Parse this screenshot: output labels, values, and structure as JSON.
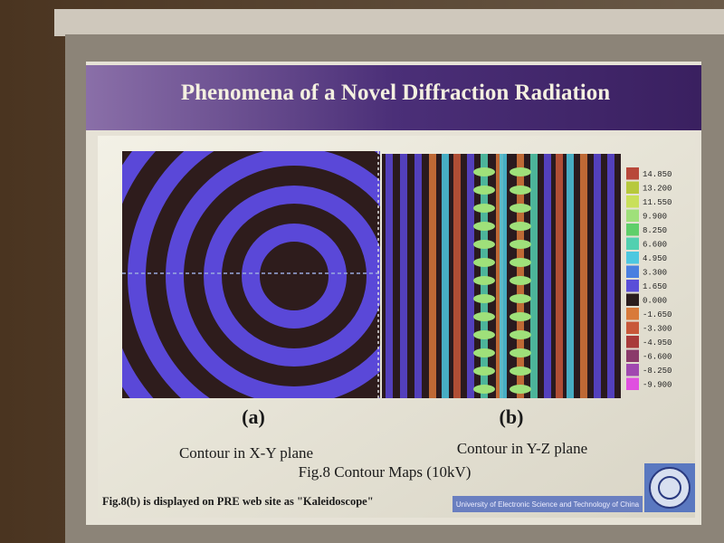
{
  "slide": {
    "title": "Phenomena of a Novel Diffraction Radiation",
    "panels": [
      {
        "label": "(a)",
        "caption": "Contour in X-Y plane"
      },
      {
        "label": "(b)",
        "caption": "Contour in Y-Z plane"
      }
    ],
    "figure_caption": "Fig.8 Contour Maps (10kV)",
    "note": "Fig.8(b) is displayed on PRE web site as \"Kaleidoscope\"",
    "institution": "University of Electronic Science and Technology of China",
    "colorbar": [
      {
        "label": "14.850",
        "color": "#b8483a"
      },
      {
        "label": "13.200",
        "color": "#b7c93c"
      },
      {
        "label": "11.550",
        "color": "#c9e05a"
      },
      {
        "label": "9.900",
        "color": "#9fe07a"
      },
      {
        "label": "8.250",
        "color": "#5fcf6a"
      },
      {
        "label": "6.600",
        "color": "#52d0b0"
      },
      {
        "label": "4.950",
        "color": "#4cc8e0"
      },
      {
        "label": "3.300",
        "color": "#4a7fe0"
      },
      {
        "label": "1.650",
        "color": "#5a4fd8"
      },
      {
        "label": "0.000",
        "color": "#2b1d1d"
      },
      {
        "label": "-1.650",
        "color": "#d87a3a"
      },
      {
        "label": "-3.300",
        "color": "#c8583a"
      },
      {
        "label": "-4.950",
        "color": "#a83a3a"
      },
      {
        "label": "-6.600",
        "color": "#8a3a6a"
      },
      {
        "label": "-8.250",
        "color": "#a048b0"
      },
      {
        "label": "-9.900",
        "color": "#e050e0"
      }
    ]
  }
}
